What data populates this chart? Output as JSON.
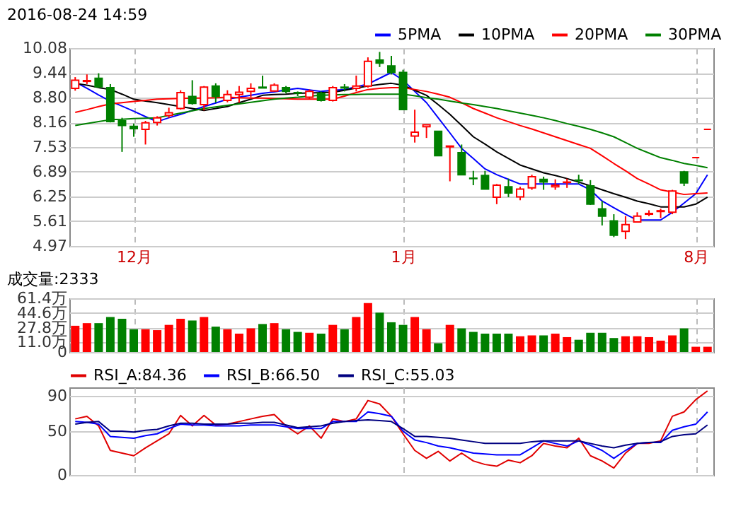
{
  "chart_data": [
    {
      "type": "candlestick",
      "title": "2016-08-24 14:59",
      "categories": [
        null,
        null,
        null,
        null,
        null,
        "12月",
        null,
        null,
        null,
        null,
        null,
        null,
        null,
        null,
        null,
        null,
        null,
        null,
        null,
        null,
        null,
        null,
        null,
        null,
        null,
        null,
        null,
        null,
        "1月",
        null,
        null,
        null,
        null,
        null,
        null,
        null,
        null,
        null,
        null,
        null,
        null,
        null,
        null,
        null,
        null,
        null,
        null,
        null,
        null,
        null,
        null,
        null,
        null,
        "8月",
        null
      ],
      "ohlc": [
        [
          9.04,
          9.33,
          8.98,
          9.25
        ],
        [
          9.22,
          9.4,
          9.15,
          9.24
        ],
        [
          9.3,
          9.43,
          9.05,
          9.08
        ],
        [
          9.06,
          9.15,
          8.16,
          8.18
        ],
        [
          8.2,
          8.28,
          7.4,
          8.08
        ],
        [
          8.06,
          8.13,
          7.79,
          8.0
        ],
        [
          7.98,
          8.2,
          7.59,
          8.15
        ],
        [
          8.16,
          8.32,
          8.08,
          8.28
        ],
        [
          8.34,
          8.54,
          8.28,
          8.41
        ],
        [
          8.52,
          8.99,
          8.49,
          8.93
        ],
        [
          8.83,
          9.25,
          8.62,
          8.65
        ],
        [
          8.62,
          9.1,
          8.47,
          9.07
        ],
        [
          9.1,
          9.17,
          8.67,
          8.83
        ],
        [
          8.73,
          8.99,
          8.68,
          8.88
        ],
        [
          8.88,
          9.1,
          8.67,
          8.94
        ],
        [
          8.96,
          9.17,
          8.81,
          9.04
        ],
        [
          9.07,
          9.37,
          9.04,
          9.05
        ],
        [
          8.97,
          9.17,
          8.96,
          9.12
        ],
        [
          9.06,
          9.1,
          8.91,
          8.96
        ],
        [
          8.93,
          8.96,
          8.84,
          8.92
        ],
        [
          8.81,
          9.01,
          8.76,
          8.96
        ],
        [
          8.91,
          8.96,
          8.7,
          8.73
        ],
        [
          8.73,
          9.1,
          8.7,
          9.06
        ],
        [
          9.07,
          9.15,
          8.96,
          9.05
        ],
        [
          9.04,
          9.37,
          8.96,
          9.1
        ],
        [
          9.1,
          9.84,
          9.06,
          9.74
        ],
        [
          9.77,
          9.98,
          9.59,
          9.69
        ],
        [
          9.62,
          9.88,
          9.4,
          9.45
        ],
        [
          9.45,
          9.52,
          8.49,
          8.49
        ],
        [
          7.81,
          8.49,
          7.64,
          7.91
        ],
        [
          8.05,
          8.1,
          7.76,
          8.1
        ],
        [
          7.93,
          7.93,
          7.3,
          7.3
        ],
        [
          7.53,
          7.56,
          6.64,
          7.55
        ],
        [
          7.38,
          7.59,
          6.81,
          6.81
        ],
        [
          6.72,
          6.91,
          6.54,
          6.71
        ],
        [
          6.79,
          6.91,
          6.44,
          6.44
        ],
        [
          6.23,
          6.57,
          6.05,
          6.54
        ],
        [
          6.5,
          6.71,
          6.23,
          6.34
        ],
        [
          6.24,
          6.5,
          6.15,
          6.44
        ],
        [
          6.47,
          6.81,
          6.42,
          6.76
        ],
        [
          6.69,
          6.76,
          6.42,
          6.62
        ],
        [
          6.5,
          6.69,
          6.42,
          6.54
        ],
        [
          6.61,
          6.71,
          6.47,
          6.62
        ],
        [
          6.67,
          6.81,
          6.57,
          6.66
        ],
        [
          6.52,
          6.67,
          6.03,
          6.05
        ],
        [
          5.93,
          6.13,
          5.5,
          5.74
        ],
        [
          5.62,
          5.79,
          5.2,
          5.25
        ],
        [
          5.35,
          5.74,
          5.15,
          5.52
        ],
        [
          5.59,
          5.84,
          5.59,
          5.74
        ],
        [
          5.79,
          5.89,
          5.74,
          5.81
        ],
        [
          5.86,
          5.93,
          5.69,
          5.88
        ],
        [
          5.84,
          6.42,
          5.79,
          6.39
        ],
        [
          6.88,
          6.91,
          6.52,
          6.6
        ],
        [
          7.25,
          7.25,
          7.25,
          7.25
        ],
        [
          7.98,
          7.98,
          7.98,
          7.98
        ]
      ],
      "colors": [
        "#ff0000",
        "#ff0000",
        "#008000",
        "#008000",
        "#008000",
        "#008000",
        "#ff0000",
        "#ff0000",
        "#ff0000",
        "#ff0000",
        "#008000",
        "#ff0000",
        "#008000",
        "#ff0000",
        "#ff0000",
        "#ff0000",
        "#008000",
        "#ff0000",
        "#008000",
        "#008000",
        "#ff0000",
        "#008000",
        "#ff0000",
        "#008000",
        "#ff0000",
        "#ff0000",
        "#008000",
        "#008000",
        "#008000",
        "#ff0000",
        "#ff0000",
        "#008000",
        "#ff0000",
        "#008000",
        "#008000",
        "#008000",
        "#ff0000",
        "#008000",
        "#ff0000",
        "#ff0000",
        "#008000",
        "#ff0000",
        "#ff0000",
        "#008000",
        "#008000",
        "#008000",
        "#008000",
        "#ff0000",
        "#ff0000",
        "#ff0000",
        "#ff0000",
        "#ff0000",
        "#008000",
        "#ff0000",
        "#ff0000"
      ],
      "series": [
        {
          "name": "5PMA",
          "type": "line",
          "color": "#0000ff",
          "values": [
            9.2,
            9.04,
            8.87,
            8.71,
            8.58,
            8.45,
            8.31,
            8.18,
            8.28,
            8.37,
            8.47,
            8.57,
            8.66,
            8.76,
            8.81,
            8.86,
            8.91,
            8.95,
            9.0,
            9.04,
            9.0,
            8.96,
            8.99,
            9.01,
            9.08,
            9.15,
            9.3,
            9.45,
            9.25,
            8.96,
            8.67,
            8.28,
            7.89,
            7.49,
            7.23,
            6.96,
            6.81,
            6.69,
            6.57,
            6.57,
            6.57,
            6.57,
            6.57,
            6.57,
            6.42,
            6.13,
            5.96,
            5.79,
            5.64,
            5.64,
            5.64,
            5.84,
            6.08,
            6.32,
            6.81
          ]
        },
        {
          "name": "10PMA",
          "type": "line",
          "color": "#000000",
          "values": [
            9.17,
            9.12,
            9.06,
            9.01,
            8.89,
            8.76,
            8.71,
            8.67,
            8.62,
            8.57,
            8.52,
            8.47,
            8.52,
            8.57,
            8.67,
            8.76,
            8.86,
            8.88,
            8.89,
            8.91,
            8.92,
            8.93,
            8.94,
            8.99,
            9.05,
            9.1,
            9.14,
            9.17,
            9.12,
            8.99,
            8.86,
            8.62,
            8.37,
            8.08,
            7.79,
            7.6,
            7.4,
            7.23,
            7.06,
            6.96,
            6.86,
            6.79,
            6.71,
            6.62,
            6.52,
            6.42,
            6.32,
            6.23,
            6.13,
            6.06,
            5.98,
            5.98,
            5.98,
            6.05,
            6.23
          ]
        },
        {
          "name": "20PMA",
          "type": "line",
          "color": "#ff0000",
          "values": [
            8.42,
            8.49,
            8.57,
            8.64,
            8.67,
            8.7,
            8.73,
            8.76,
            8.77,
            8.78,
            8.79,
            8.79,
            8.8,
            8.81,
            8.8,
            8.79,
            8.79,
            8.78,
            8.77,
            8.76,
            8.76,
            8.76,
            8.76,
            8.84,
            8.93,
            9.01,
            9.04,
            9.06,
            9.06,
            9.01,
            8.96,
            8.89,
            8.81,
            8.67,
            8.52,
            8.4,
            8.28,
            8.18,
            8.08,
            7.99,
            7.89,
            7.79,
            7.69,
            7.59,
            7.49,
            7.3,
            7.1,
            6.91,
            6.71,
            6.57,
            6.42,
            6.36,
            6.3,
            6.32,
            6.34
          ]
        },
        {
          "name": "30PMA",
          "type": "line",
          "color": "#008000",
          "values": [
            8.08,
            8.13,
            8.18,
            8.23,
            8.24,
            8.26,
            8.27,
            8.28,
            8.34,
            8.4,
            8.46,
            8.52,
            8.56,
            8.6,
            8.64,
            8.68,
            8.72,
            8.76,
            8.79,
            8.81,
            8.84,
            8.86,
            8.87,
            8.88,
            8.88,
            8.89,
            8.89,
            8.89,
            8.89,
            8.85,
            8.8,
            8.76,
            8.71,
            8.66,
            8.62,
            8.57,
            8.52,
            8.46,
            8.4,
            8.34,
            8.28,
            8.21,
            8.13,
            8.06,
            7.98,
            7.89,
            7.79,
            7.64,
            7.49,
            7.37,
            7.25,
            7.18,
            7.1,
            7.05,
            6.99
          ]
        }
      ],
      "ylim": [
        4.97,
        10.08
      ],
      "yticks": [
        10.08,
        9.44,
        {
          "value": 8.8,
          "label": "8.80"
        },
        8.16,
        7.53,
        6.89,
        6.25,
        5.61,
        4.97
      ],
      "grid": true,
      "legend": "top right"
    },
    {
      "type": "bar",
      "title": "成交量:2333",
      "categories": [
        null,
        null,
        null,
        null,
        null,
        null,
        null,
        null,
        null,
        null,
        null,
        null,
        null,
        null,
        null,
        null,
        null,
        null,
        null,
        null,
        null,
        null,
        null,
        null,
        null,
        null,
        null,
        null,
        null,
        null,
        null,
        null,
        null,
        null,
        null,
        null,
        null,
        null,
        null,
        null,
        null,
        null,
        null,
        null,
        null,
        null,
        null,
        null,
        null,
        null,
        null,
        null,
        null,
        null,
        null
      ],
      "values": [
        30,
        33,
        33,
        40,
        38,
        26,
        26,
        25,
        31,
        38,
        36,
        40,
        29,
        26,
        21,
        27,
        32,
        33,
        26,
        23,
        22,
        21,
        31,
        26,
        40,
        56,
        45,
        34,
        31,
        40,
        26,
        10,
        31,
        27,
        23,
        21,
        21,
        21,
        18,
        19,
        19,
        21,
        17,
        14,
        22,
        22,
        16,
        18,
        18,
        17,
        13,
        19,
        27,
        6,
        6
      ],
      "colors": [
        "#ff0000",
        "#ff0000",
        "#008000",
        "#008000",
        "#008000",
        "#008000",
        "#ff0000",
        "#ff0000",
        "#ff0000",
        "#ff0000",
        "#008000",
        "#ff0000",
        "#008000",
        "#ff0000",
        "#ff0000",
        "#ff0000",
        "#008000",
        "#ff0000",
        "#008000",
        "#008000",
        "#ff0000",
        "#008000",
        "#ff0000",
        "#008000",
        "#ff0000",
        "#ff0000",
        "#008000",
        "#008000",
        "#008000",
        "#ff0000",
        "#ff0000",
        "#008000",
        "#ff0000",
        "#008000",
        "#008000",
        "#008000",
        "#008000",
        "#008000",
        "#ff0000",
        "#ff0000",
        "#008000",
        "#ff0000",
        "#ff0000",
        "#008000",
        "#008000",
        "#008000",
        "#008000",
        "#ff0000",
        "#ff0000",
        "#ff0000",
        "#ff0000",
        "#ff0000",
        "#008000",
        "#ff0000",
        "#ff0000"
      ],
      "ylim": [
        0,
        61.4
      ],
      "yticks": [
        {
          "value": 61.4,
          "label": "61.4万"
        },
        {
          "value": 44.6,
          "label": "44.6万"
        },
        {
          "value": 27.8,
          "label": "27.8万"
        },
        {
          "value": 11.0,
          "label": "11.0万"
        },
        0
      ],
      "grid": true,
      "tick_labels": "y"
    },
    {
      "type": "line",
      "categories": [
        null,
        null,
        null,
        null,
        null,
        null,
        null,
        null,
        null,
        null,
        null,
        null,
        null,
        null,
        null,
        null,
        null,
        null,
        null,
        null,
        null,
        null,
        null,
        null,
        null,
        null,
        null,
        null,
        null,
        null,
        null,
        null,
        null,
        null,
        null,
        null,
        null,
        null,
        null,
        null,
        null,
        null,
        null,
        null,
        null,
        null,
        null,
        null,
        null,
        null,
        null,
        null,
        null,
        null,
        null
      ],
      "series": [
        {
          "name": "RSI_A:84.36",
          "color": "#e00000",
          "values": [
            64,
            67,
            56,
            28,
            25,
            22,
            31,
            39,
            47,
            68,
            56,
            68,
            57,
            58,
            61,
            64,
            67,
            69,
            56,
            47,
            56,
            42,
            64,
            61,
            64,
            85,
            81,
            67,
            47,
            28,
            19,
            27,
            16,
            25,
            16,
            12,
            10,
            17,
            14,
            22,
            36,
            33,
            31,
            42,
            22,
            16,
            8,
            25,
            36,
            36,
            39,
            67,
            72,
            86,
            96
          ]
        },
        {
          "name": "RSI_B:66.50",
          "color": "#0000ff",
          "values": [
            61,
            60,
            58,
            44,
            43,
            42,
            45,
            47,
            53,
            58,
            57,
            57,
            56,
            56,
            56,
            57,
            57,
            57,
            55,
            53,
            53,
            53,
            61,
            61,
            61,
            72,
            70,
            67,
            50,
            40,
            37,
            33,
            31,
            28,
            25,
            24,
            23,
            23,
            23,
            31,
            39,
            36,
            33,
            39,
            34,
            28,
            19,
            28,
            36,
            37,
            37,
            51,
            55,
            58,
            72
          ]
        },
        {
          "name": "RSI_C:55.03",
          "color": "#000080",
          "values": [
            58,
            60,
            61,
            50,
            50,
            49,
            51,
            52,
            56,
            59,
            59,
            58,
            58,
            58,
            59,
            59,
            60,
            60,
            57,
            54,
            55,
            56,
            59,
            61,
            62,
            63,
            62,
            61,
            53,
            44,
            44,
            43,
            42,
            40,
            38,
            36,
            36,
            36,
            36,
            38,
            39,
            39,
            39,
            39,
            36,
            33,
            31,
            34,
            36,
            37,
            38,
            44,
            46,
            47,
            57
          ]
        }
      ],
      "ylim": [
        0,
        100
      ],
      "yticks": [
        90,
        50,
        0
      ],
      "grid": true,
      "tick_labels": "y",
      "legend": "top left"
    }
  ]
}
